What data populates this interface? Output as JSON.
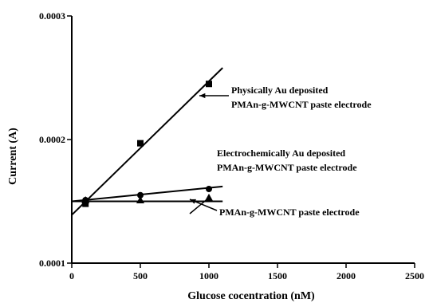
{
  "chart_data": {
    "type": "scatter",
    "xlabel": "Glucose cocentration (nM)",
    "ylabel": "Current (A)",
    "xlim": [
      0,
      2500
    ],
    "ylim": [
      0.0001,
      0.0003
    ],
    "x_ticks": [
      0,
      500,
      1000,
      1500,
      2000,
      2500
    ],
    "x_tick_labels": [
      "0",
      "500",
      "1000",
      "1500",
      "2000",
      "2500"
    ],
    "y_ticks": [
      0.0001,
      0.0002,
      0.0003
    ],
    "y_tick_labels": [
      "0.0001",
      "0.0002",
      "0.0003"
    ],
    "grid": false,
    "legend": "none",
    "series": [
      {
        "marker": "square",
        "x": [
          100,
          500,
          1000
        ],
        "y": [
          0.000148,
          0.000197,
          0.000245
        ],
        "fit": {
          "x": [
            0,
            1100
          ],
          "y": [
            0.000139,
            0.000258
          ]
        }
      },
      {
        "marker": "circle",
        "x": [
          100,
          500,
          1000
        ],
        "y": [
          0.000151,
          0.000155,
          0.00016
        ],
        "fit": {
          "x": [
            0,
            1100
          ],
          "y": [
            0.00015,
            0.000162
          ]
        }
      },
      {
        "marker": "triangle",
        "x": [
          100,
          500,
          1000
        ],
        "y": [
          0.000151,
          0.000151,
          0.000153
        ],
        "fit": {
          "x": [
            0,
            1100
          ],
          "y": [
            0.00015,
            0.00015
          ]
        }
      }
    ],
    "annotations": [
      {
        "lines": [
          "Physically Au deposited",
          "PMAn-g-MWCNT paste electrode"
        ]
      },
      {
        "lines": [
          "Electrochemically Au deposited",
          "PMAn-g-MWCNT paste electrode"
        ]
      },
      {
        "lines": [
          "PMAn-g-MWCNT paste electrode"
        ]
      }
    ]
  }
}
